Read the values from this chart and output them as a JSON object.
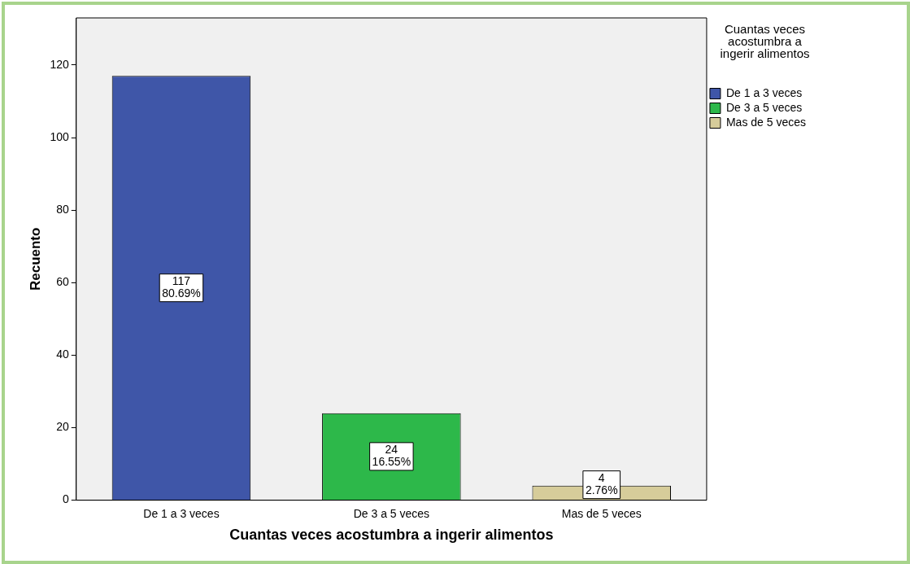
{
  "chart_data": {
    "type": "bar",
    "xlabel": "Cuantas veces acostumbra a ingerir alimentos",
    "ylabel": "Recuento",
    "legend_title": "Cuantas veces acostumbra a ingerir alimentos",
    "legend": "top right",
    "categories": [
      "De 1 a 3 veces",
      "De 3 a 5 veces",
      "Mas de 5 veces"
    ],
    "series": [
      {
        "name": "De 1 a 3 veces",
        "color": "#3f56a8",
        "values": [
          117,
          null,
          null
        ],
        "value_labels": [
          "117\n80.69%",
          null,
          null
        ]
      },
      {
        "name": "De 3 a 5 veces",
        "color": "#2db84a",
        "values": [
          null,
          24,
          null
        ],
        "value_labels": [
          null,
          "24\n16.55%",
          null
        ]
      },
      {
        "name": "Mas de 5 veces",
        "color": "#d6cc9a",
        "values": [
          null,
          null,
          4
        ],
        "value_labels": [
          null,
          null,
          "4\n2.76%"
        ]
      }
    ],
    "ylim": [
      0,
      133
    ],
    "yticks": [
      0,
      20,
      40,
      60,
      80,
      100,
      120
    ],
    "grid": false
  }
}
